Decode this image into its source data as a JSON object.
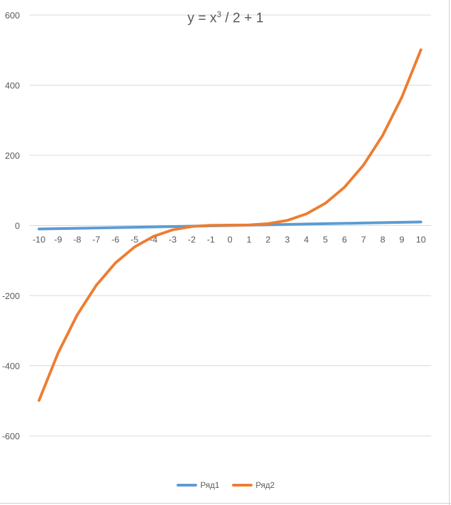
{
  "chart_data": {
    "type": "line",
    "title": {
      "base": "y = x",
      "sup": "3",
      "rest": " / 2 + 1"
    },
    "categories": [
      "-10",
      "-9",
      "-8",
      "-7",
      "-6",
      "-5",
      "-4",
      "-3",
      "-2",
      "-1",
      "0",
      "1",
      "2",
      "3",
      "4",
      "5",
      "6",
      "7",
      "8",
      "9",
      "10"
    ],
    "ylim": [
      -700,
      600
    ],
    "y_ticks": [
      "600",
      "400",
      "200",
      "0",
      "-200",
      "-400",
      "-600"
    ],
    "grid": true,
    "legend_position": "bottom",
    "series": [
      {
        "name": "Ряд1",
        "color": "#5B9BD5",
        "values": [
          -10,
          -9,
          -8,
          -7,
          -6,
          -5,
          -4,
          -3,
          -2,
          -1,
          0,
          1,
          2,
          3,
          4,
          5,
          6,
          7,
          8,
          9,
          10
        ]
      },
      {
        "name": "Ряд2",
        "color": "#ED7D31",
        "values": [
          -499,
          -363.5,
          -255,
          -170.5,
          -107,
          -61.5,
          -31,
          -12.5,
          -3,
          0.5,
          1,
          1.5,
          5,
          14.5,
          33,
          63.5,
          109,
          172.5,
          257,
          365.5,
          501
        ]
      }
    ]
  }
}
